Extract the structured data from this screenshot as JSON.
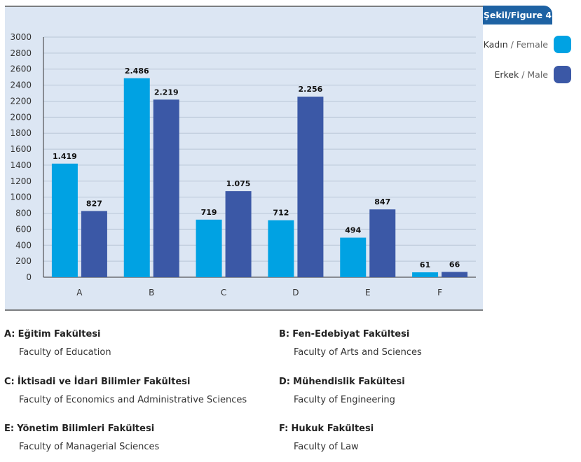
{
  "figure_label": "Şekil/Figure 4",
  "legend": [
    {
      "tr": "Kadın",
      "sep": " / ",
      "en": "Female",
      "color": "#00a2e3"
    },
    {
      "tr": "Erkek",
      "sep": " / ",
      "en": "Male",
      "color": "#3b58a6"
    }
  ],
  "chart_data": {
    "type": "bar",
    "categories": [
      "A",
      "B",
      "C",
      "D",
      "E",
      "F"
    ],
    "series": [
      {
        "name": "Kadın / Female",
        "values": [
          1419,
          2486,
          719,
          712,
          494,
          61
        ],
        "labels": [
          "1.419",
          "2.486",
          "719",
          "712",
          "494",
          "61"
        ],
        "color": "#00a2e3"
      },
      {
        "name": "Erkek / Male",
        "values": [
          827,
          2219,
          1075,
          2256,
          847,
          66
        ],
        "labels": [
          "827",
          "2.219",
          "1.075",
          "2.256",
          "847",
          "66"
        ],
        "color": "#3b58a6"
      }
    ],
    "ylim": [
      0,
      3000
    ],
    "yticks": [
      0,
      200,
      400,
      600,
      800,
      1000,
      1200,
      1400,
      1600,
      1800,
      2000,
      2200,
      2400,
      2600,
      2800,
      3000
    ],
    "grid": true,
    "title": "",
    "xlabel": "",
    "ylabel": ""
  },
  "faculties": [
    {
      "code": "A:",
      "tr": "Eğitim Fakültesi",
      "en": "Faculty of Education"
    },
    {
      "code": "B:",
      "tr": "Fen-Edebiyat Fakültesi",
      "en": "Faculty of Arts and Sciences"
    },
    {
      "code": "C:",
      "tr": "İktisadi ve İdari Bilimler Fakültesi",
      "en": "Faculty of Economics and Administrative Sciences"
    },
    {
      "code": "D:",
      "tr": "Mühendislik Fakültesi",
      "en": "Faculty of Engineering"
    },
    {
      "code": "E:",
      "tr": "Yönetim Bilimleri Fakültesi",
      "en": "Faculty of Managerial Sciences"
    },
    {
      "code": "F:",
      "tr": "Hukuk Fakültesi",
      "en": "Faculty of Law"
    }
  ]
}
